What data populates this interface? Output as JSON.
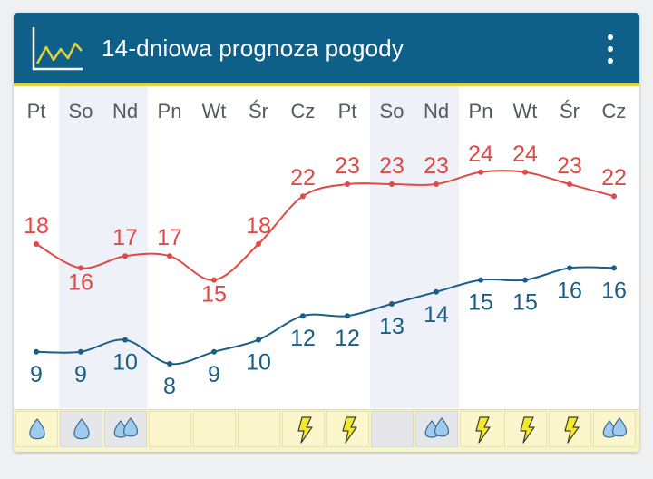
{
  "header": {
    "title": "14-dniowa prognoza pogody",
    "icon": "chart-icon",
    "menu_icon": "more-vert-icon"
  },
  "colors": {
    "header_bg": "#0e6089",
    "accent_line": "#e3d23a",
    "max_line": "#de4a45",
    "min_line": "#1a5f86",
    "weekend_bg": "#eef1f7",
    "drop_fill": "#9fcbef",
    "bolt_fill": "#f5e826"
  },
  "chart_data": {
    "type": "line",
    "categories": [
      "Pt",
      "So",
      "Nd",
      "Pn",
      "Wt",
      "Śr",
      "Cz",
      "Pt",
      "So",
      "Nd",
      "Pn",
      "Wt",
      "Śr",
      "Cz"
    ],
    "weekend": [
      false,
      true,
      true,
      false,
      false,
      false,
      false,
      false,
      true,
      true,
      false,
      false,
      false,
      false
    ],
    "series": [
      {
        "name": "max",
        "values": [
          18,
          16,
          17,
          17,
          15,
          18,
          22,
          23,
          23,
          23,
          24,
          24,
          23,
          22
        ]
      },
      {
        "name": "min",
        "values": [
          9,
          9,
          10,
          8,
          9,
          10,
          12,
          12,
          13,
          14,
          15,
          15,
          16,
          16
        ]
      }
    ],
    "ylim": [
      6,
      26
    ]
  },
  "weather_icons": [
    "drop",
    "drop",
    "drops",
    "none",
    "none",
    "none",
    "storm",
    "storm",
    "none",
    "drops",
    "storm",
    "storm",
    "storm",
    "drops"
  ]
}
